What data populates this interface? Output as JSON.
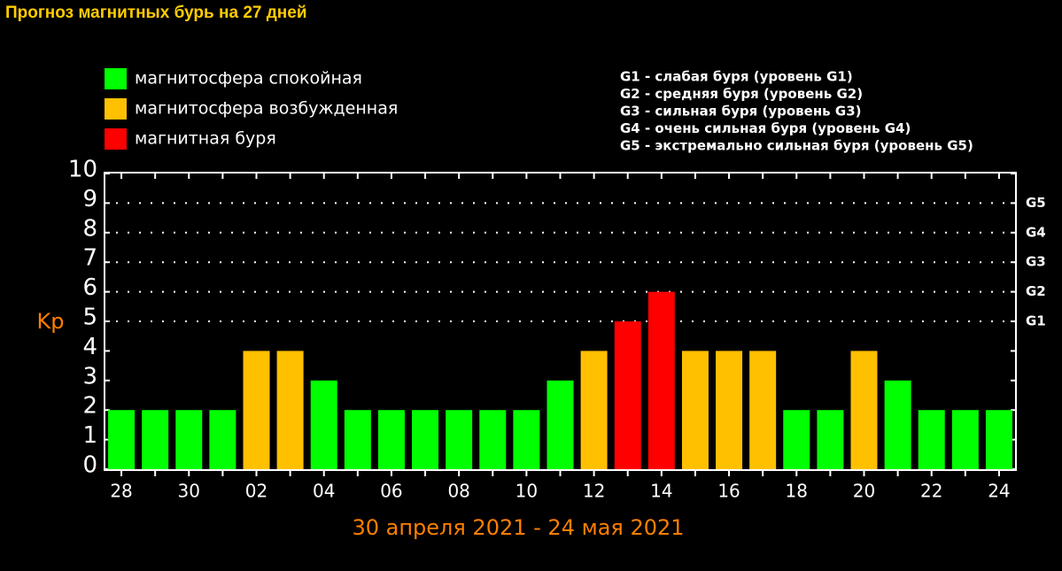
{
  "chart_data": {
    "type": "bar",
    "title": "Прогноз магнитных бурь на 27 дней",
    "legend": [
      {
        "label": "магнитосфера спокойная",
        "color": "#00ff00"
      },
      {
        "label": "магнитосфера возбужденная",
        "color": "#ffc000"
      },
      {
        "label": "магнитная буря",
        "color": "#ff0000"
      }
    ],
    "storm_levels": [
      "G1 - слабая буря (уровень G1)",
      "G2 - средняя буря (уровень G2)",
      "G3 - сильная буря (уровень G3)",
      "G4 - очень сильная буря (уровень G4)",
      "G5 - экстремально сильная буря (уровень G5)"
    ],
    "y_label": "Kp",
    "x_label": "30 апреля 2021 - 24 мая 2021",
    "categories": [
      "28",
      null,
      "30",
      null,
      "02",
      null,
      "04",
      null,
      "06",
      null,
      "08",
      null,
      "10",
      null,
      "12",
      null,
      "14",
      null,
      "16",
      null,
      "18",
      null,
      "20",
      null,
      "22",
      null,
      "24"
    ],
    "values": [
      2,
      2,
      2,
      2,
      4,
      4,
      3,
      2,
      2,
      2,
      2,
      2,
      2,
      3,
      4,
      5,
      6,
      4,
      4,
      4,
      2,
      2,
      4,
      3,
      2,
      2,
      2
    ],
    "bar_colors": [
      "#00ff00",
      "#00ff00",
      "#00ff00",
      "#00ff00",
      "#ffc000",
      "#ffc000",
      "#00ff00",
      "#00ff00",
      "#00ff00",
      "#00ff00",
      "#00ff00",
      "#00ff00",
      "#00ff00",
      "#00ff00",
      "#ffc000",
      "#ff0000",
      "#ff0000",
      "#ffc000",
      "#ffc000",
      "#ffc000",
      "#00ff00",
      "#00ff00",
      "#ffc000",
      "#00ff00",
      "#00ff00",
      "#00ff00",
      "#00ff00"
    ],
    "ylim": [
      0,
      10
    ],
    "yticks": [
      0,
      1,
      2,
      3,
      4,
      5,
      6,
      7,
      8,
      9,
      10
    ],
    "y2lim": [
      0,
      10
    ],
    "y2ticks": [
      {
        "value": 5,
        "label": "G1"
      },
      {
        "value": 6,
        "label": "G2"
      },
      {
        "value": 7,
        "label": "G3"
      },
      {
        "value": 8,
        "label": "G4"
      },
      {
        "value": 9,
        "label": "G5"
      }
    ],
    "grid": "dotted"
  }
}
